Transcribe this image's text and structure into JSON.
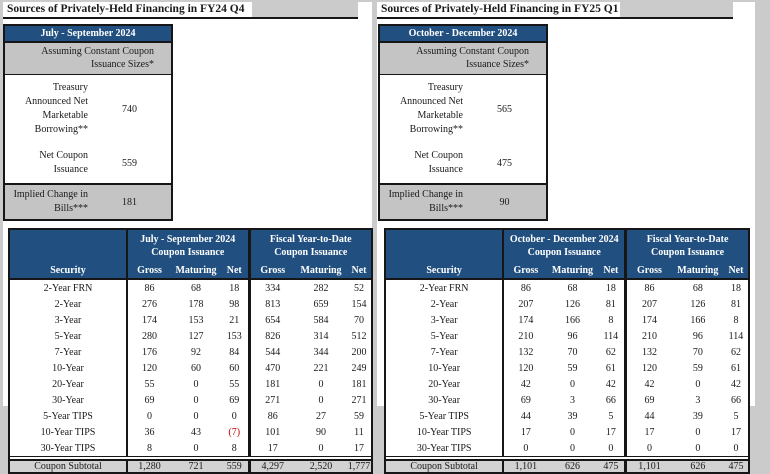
{
  "colors": {
    "page_background": "#CBCBCB",
    "header_blue": "#215080",
    "note_row_gray": "#C4C4C4",
    "subtotal_gray": "#D2D2D2",
    "negative_red": "#C00000"
  },
  "panels": [
    {
      "title": "Sources of Privately-Held Financing in FY24 Q4",
      "summary_table": {
        "period_header": "July - September 2024",
        "note_lines": [
          "Assuming Constant Coupon",
          "Issuance Sizes*"
        ],
        "rows": [
          {
            "label_lines": [
              "Treasury Announced Net",
              "Marketable Borrowing**"
            ],
            "value": "740"
          },
          {
            "label_lines": [
              "Net Coupon Issuance"
            ],
            "value": "559"
          },
          {
            "label_lines": [
              "Implied Change in Bills***"
            ],
            "value": "181"
          }
        ]
      },
      "issuance_table": {
        "security_header": "Security",
        "groups": [
          {
            "title": "July - September 2024",
            "subtitle": "Coupon Issuance"
          },
          {
            "title": "Fiscal Year-to-Date",
            "subtitle": "Coupon Issuance"
          }
        ],
        "col_headers": [
          "Gross",
          "Maturing",
          "Net"
        ],
        "rows": [
          {
            "security": "2-Year FRN",
            "quarter": [
              "86",
              "68",
              "18"
            ],
            "fytd": [
              "334",
              "282",
              "52"
            ]
          },
          {
            "security": "2-Year",
            "quarter": [
              "276",
              "178",
              "98"
            ],
            "fytd": [
              "813",
              "659",
              "154"
            ]
          },
          {
            "security": "3-Year",
            "quarter": [
              "174",
              "153",
              "21"
            ],
            "fytd": [
              "654",
              "584",
              "70"
            ]
          },
          {
            "security": "5-Year",
            "quarter": [
              "280",
              "127",
              "153"
            ],
            "fytd": [
              "826",
              "314",
              "512"
            ]
          },
          {
            "security": "7-Year",
            "quarter": [
              "176",
              "92",
              "84"
            ],
            "fytd": [
              "544",
              "344",
              "200"
            ]
          },
          {
            "security": "10-Year",
            "quarter": [
              "120",
              "60",
              "60"
            ],
            "fytd": [
              "470",
              "221",
              "249"
            ]
          },
          {
            "security": "20-Year",
            "quarter": [
              "55",
              "0",
              "55"
            ],
            "fytd": [
              "181",
              "0",
              "181"
            ]
          },
          {
            "security": "30-Year",
            "quarter": [
              "69",
              "0",
              "69"
            ],
            "fytd": [
              "271",
              "0",
              "271"
            ]
          },
          {
            "security": "5-Year TIPS",
            "quarter": [
              "0",
              "0",
              "0"
            ],
            "fytd": [
              "86",
              "27",
              "59"
            ]
          },
          {
            "security": "10-Year TIPS",
            "quarter": [
              "36",
              "43",
              "(7)"
            ],
            "fytd": [
              "101",
              "90",
              "11"
            ]
          },
          {
            "security": "30-Year TIPS",
            "quarter": [
              "8",
              "0",
              "8"
            ],
            "fytd": [
              "17",
              "0",
              "17"
            ]
          }
        ],
        "subtotal": {
          "label": "Coupon Subtotal",
          "quarter": [
            "1,280",
            "721",
            "559"
          ],
          "fytd": [
            "4,297",
            "2,520",
            "1,777"
          ]
        }
      }
    },
    {
      "title": "Sources of Privately-Held Financing in FY25 Q1",
      "summary_table": {
        "period_header": "October - December 2024",
        "note_lines": [
          "Assuming Constant Coupon",
          "Issuance Sizes*"
        ],
        "rows": [
          {
            "label_lines": [
              "Treasury Announced Net",
              "Marketable Borrowing**"
            ],
            "value": "565"
          },
          {
            "label_lines": [
              "Net Coupon Issuance"
            ],
            "value": "475"
          },
          {
            "label_lines": [
              "Implied Change in Bills***"
            ],
            "value": "90"
          }
        ]
      },
      "issuance_table": {
        "security_header": "Security",
        "groups": [
          {
            "title": "October - December 2024",
            "subtitle": "Coupon Issuance"
          },
          {
            "title": "Fiscal Year-to-Date",
            "subtitle": "Coupon Issuance"
          }
        ],
        "col_headers": [
          "Gross",
          "Maturing",
          "Net"
        ],
        "rows": [
          {
            "security": "2-Year FRN",
            "quarter": [
              "86",
              "68",
              "18"
            ],
            "fytd": [
              "86",
              "68",
              "18"
            ]
          },
          {
            "security": "2-Year",
            "quarter": [
              "207",
              "126",
              "81"
            ],
            "fytd": [
              "207",
              "126",
              "81"
            ]
          },
          {
            "security": "3-Year",
            "quarter": [
              "174",
              "166",
              "8"
            ],
            "fytd": [
              "174",
              "166",
              "8"
            ]
          },
          {
            "security": "5-Year",
            "quarter": [
              "210",
              "96",
              "114"
            ],
            "fytd": [
              "210",
              "96",
              "114"
            ]
          },
          {
            "security": "7-Year",
            "quarter": [
              "132",
              "70",
              "62"
            ],
            "fytd": [
              "132",
              "70",
              "62"
            ]
          },
          {
            "security": "10-Year",
            "quarter": [
              "120",
              "59",
              "61"
            ],
            "fytd": [
              "120",
              "59",
              "61"
            ]
          },
          {
            "security": "20-Year",
            "quarter": [
              "42",
              "0",
              "42"
            ],
            "fytd": [
              "42",
              "0",
              "42"
            ]
          },
          {
            "security": "30-Year",
            "quarter": [
              "69",
              "3",
              "66"
            ],
            "fytd": [
              "69",
              "3",
              "66"
            ]
          },
          {
            "security": "5-Year TIPS",
            "quarter": [
              "44",
              "39",
              "5"
            ],
            "fytd": [
              "44",
              "39",
              "5"
            ]
          },
          {
            "security": "10-Year TIPS",
            "quarter": [
              "17",
              "0",
              "17"
            ],
            "fytd": [
              "17",
              "0",
              "17"
            ]
          },
          {
            "security": "30-Year TIPS",
            "quarter": [
              "0",
              "0",
              "0"
            ],
            "fytd": [
              "0",
              "0",
              "0"
            ]
          }
        ],
        "subtotal": {
          "label": "Coupon Subtotal",
          "quarter": [
            "1,101",
            "626",
            "475"
          ],
          "fytd": [
            "1,101",
            "626",
            "475"
          ]
        }
      }
    }
  ]
}
